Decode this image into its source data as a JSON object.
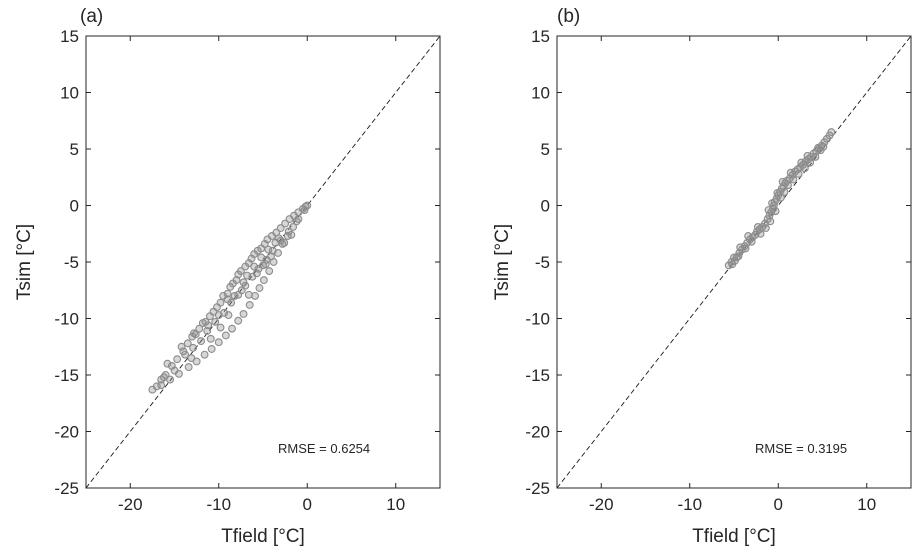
{
  "chart_data": [
    {
      "type": "scatter",
      "panel_label": "(a)",
      "xlabel": "Tfield [°C]",
      "ylabel": "Tsim [°C]",
      "xlim": [
        -25,
        15
      ],
      "ylim": [
        -25,
        15
      ],
      "xticks": [
        -20,
        -10,
        0,
        10
      ],
      "xtick_labels": [
        "-20",
        "-10",
        "0",
        "10"
      ],
      "yticks": [
        15,
        10,
        5,
        0,
        -5,
        -10,
        -15,
        -20,
        -25
      ],
      "ytick_labels": [
        "15",
        "10",
        "5",
        "0",
        "-5",
        "-10",
        "-15",
        "-20",
        "-25"
      ],
      "reference_line": "1:1 dashed",
      "annotation": "RMSE = 0.6254",
      "grid": false,
      "marker_color": "#8c8c8c",
      "series": [
        {
          "points": [
            [
              -17.5,
              -16.3
            ],
            [
              -17.0,
              -16.0
            ],
            [
              -16.5,
              -15.4
            ],
            [
              -16.0,
              -15.0
            ],
            [
              -15.3,
              -14.2
            ],
            [
              -14.7,
              -13.6
            ],
            [
              -14.0,
              -12.9
            ],
            [
              -13.5,
              -12.2
            ],
            [
              -13.0,
              -11.6
            ],
            [
              -12.6,
              -11.4
            ],
            [
              -12.2,
              -10.9
            ],
            [
              -11.8,
              -10.4
            ],
            [
              -11.5,
              -10.3
            ],
            [
              -11.0,
              -9.8
            ],
            [
              -10.6,
              -9.4
            ],
            [
              -10.2,
              -9.0
            ],
            [
              -9.8,
              -8.6
            ],
            [
              -9.5,
              -8.0
            ],
            [
              -9.0,
              -7.8
            ],
            [
              -8.7,
              -7.2
            ],
            [
              -8.4,
              -6.9
            ],
            [
              -8.0,
              -6.6
            ],
            [
              -7.8,
              -6.1
            ],
            [
              -7.5,
              -5.8
            ],
            [
              -7.0,
              -5.4
            ],
            [
              -6.6,
              -5.1
            ],
            [
              -6.3,
              -4.7
            ],
            [
              -6.0,
              -4.3
            ],
            [
              -5.6,
              -4.0
            ],
            [
              -5.2,
              -3.8
            ],
            [
              -4.8,
              -3.4
            ],
            [
              -4.5,
              -3.0
            ],
            [
              -4.0,
              -2.7
            ],
            [
              -3.5,
              -2.4
            ],
            [
              -3.0,
              -2.0
            ],
            [
              -2.5,
              -1.6
            ],
            [
              -2.0,
              -1.2
            ],
            [
              -1.5,
              -0.9
            ],
            [
              -1.0,
              -0.6
            ],
            [
              -0.5,
              -0.3
            ],
            [
              -0.2,
              -0.1
            ],
            [
              0.0,
              0.0
            ],
            [
              -0.3,
              -0.4
            ],
            [
              -1.0,
              -1.2
            ],
            [
              -1.6,
              -1.9
            ],
            [
              -2.2,
              -2.7
            ],
            [
              -2.8,
              -3.4
            ],
            [
              -3.3,
              -4.2
            ],
            [
              -3.8,
              -5.0
            ],
            [
              -4.3,
              -5.8
            ],
            [
              -4.9,
              -6.6
            ],
            [
              -5.4,
              -7.3
            ],
            [
              -5.9,
              -8.0
            ],
            [
              -6.5,
              -8.8
            ],
            [
              -7.2,
              -9.6
            ],
            [
              -7.8,
              -10.2
            ],
            [
              -8.5,
              -10.9
            ],
            [
              -9.2,
              -11.5
            ],
            [
              -10.0,
              -12.1
            ],
            [
              -10.8,
              -12.7
            ],
            [
              -11.6,
              -13.2
            ],
            [
              -12.5,
              -13.8
            ],
            [
              -13.4,
              -14.3
            ],
            [
              -14.5,
              -14.9
            ],
            [
              -15.5,
              -15.4
            ],
            [
              -16.5,
              -15.9
            ],
            [
              -12.9,
              -12.6
            ],
            [
              -12.0,
              -12.0
            ],
            [
              -11.3,
              -11.1
            ],
            [
              -10.4,
              -10.3
            ],
            [
              -9.4,
              -9.5
            ],
            [
              -8.6,
              -8.6
            ],
            [
              -7.8,
              -7.9
            ],
            [
              -7.0,
              -7.1
            ],
            [
              -6.2,
              -6.3
            ],
            [
              -5.5,
              -5.6
            ],
            [
              -4.6,
              -4.8
            ],
            [
              -3.9,
              -4.0
            ],
            [
              -3.0,
              -3.1
            ],
            [
              -2.1,
              -2.3
            ],
            [
              -1.2,
              -1.4
            ],
            [
              -6.8,
              -6.2
            ],
            [
              -6.0,
              -5.4
            ],
            [
              -5.2,
              -4.6
            ],
            [
              -4.4,
              -3.9
            ],
            [
              -3.6,
              -3.3
            ],
            [
              -8.2,
              -8.0
            ],
            [
              -9.0,
              -8.3
            ],
            [
              -10.0,
              -9.7
            ],
            [
              -11.2,
              -10.6
            ],
            [
              -13.8,
              -13.2
            ],
            [
              -15.0,
              -14.6
            ],
            [
              -16.2,
              -15.2
            ],
            [
              -14.2,
              -12.5
            ],
            [
              -12.8,
              -11.3
            ],
            [
              -15.8,
              -14.0
            ],
            [
              -13.1,
              -13.5
            ],
            [
              -2.6,
              -3.3
            ],
            [
              -1.8,
              -2.6
            ],
            [
              -4.1,
              -4.5
            ],
            [
              -5.7,
              -6.0
            ],
            [
              -7.4,
              -7.5
            ],
            [
              -8.9,
              -9.7
            ],
            [
              -9.8,
              -10.8
            ],
            [
              -10.9,
              -11.8
            ],
            [
              -7.2,
              -6.8
            ],
            [
              -5.0,
              -5.3
            ],
            [
              -6.6,
              -7.9
            ],
            [
              -4.7,
              -5.2
            ],
            [
              -3.2,
              -2.9
            ]
          ]
        }
      ]
    },
    {
      "type": "scatter",
      "panel_label": "(b)",
      "xlabel": "Tfield [°C]",
      "ylabel": "Tsim [°C]",
      "xlim": [
        -25,
        15
      ],
      "ylim": [
        -25,
        15
      ],
      "xticks": [
        -20,
        -10,
        0,
        10
      ],
      "xtick_labels": [
        "-20",
        "-10",
        "0",
        "10"
      ],
      "yticks": [
        15,
        10,
        5,
        0,
        -5,
        -10,
        -15,
        -20,
        -25
      ],
      "ytick_labels": [
        "15",
        "10",
        "5",
        "0",
        "-5",
        "-10",
        "-15",
        "-20",
        "-25"
      ],
      "reference_line": "1:1 dashed",
      "annotation": "RMSE = 0.3195",
      "grid": false,
      "marker_color": "#8c8c8c",
      "series": [
        {
          "points": [
            [
              -5.6,
              -5.3
            ],
            [
              -5.3,
              -5.0
            ],
            [
              -5.0,
              -4.6
            ],
            [
              -4.7,
              -4.6
            ],
            [
              -4.4,
              -4.2
            ],
            [
              -4.1,
              -3.9
            ],
            [
              -3.8,
              -3.6
            ],
            [
              -3.5,
              -3.3
            ],
            [
              -3.2,
              -3.0
            ],
            [
              -2.9,
              -2.8
            ],
            [
              -2.6,
              -2.6
            ],
            [
              -2.4,
              -2.3
            ],
            [
              -2.1,
              -2.1
            ],
            [
              -1.8,
              -1.9
            ],
            [
              -1.5,
              -1.6
            ],
            [
              -1.2,
              -1.2
            ],
            [
              -1.0,
              -0.9
            ],
            [
              -0.8,
              -0.6
            ],
            [
              -0.6,
              -0.3
            ],
            [
              -0.5,
              0.0
            ],
            [
              -0.4,
              0.3
            ],
            [
              -0.2,
              0.6
            ],
            [
              0.0,
              0.9
            ],
            [
              0.2,
              1.2
            ],
            [
              0.4,
              1.5
            ],
            [
              0.6,
              1.7
            ],
            [
              0.8,
              2.0
            ],
            [
              1.0,
              2.2
            ],
            [
              1.3,
              2.4
            ],
            [
              1.6,
              2.7
            ],
            [
              1.9,
              3.0
            ],
            [
              2.2,
              3.2
            ],
            [
              2.5,
              3.4
            ],
            [
              2.8,
              3.6
            ],
            [
              3.1,
              3.9
            ],
            [
              3.4,
              4.1
            ],
            [
              3.7,
              4.3
            ],
            [
              4.0,
              4.6
            ],
            [
              4.3,
              4.8
            ],
            [
              4.6,
              5.0
            ],
            [
              4.9,
              5.3
            ],
            [
              5.2,
              5.6
            ],
            [
              5.5,
              5.9
            ],
            [
              5.8,
              6.2
            ],
            [
              6.0,
              6.5
            ],
            [
              -0.3,
              -0.5
            ],
            [
              -0.9,
              -1.4
            ],
            [
              -1.4,
              -2.0
            ],
            [
              -2.0,
              -2.5
            ],
            [
              -3.0,
              -3.2
            ],
            [
              -3.7,
              -3.8
            ],
            [
              -4.5,
              -4.5
            ],
            [
              -5.2,
              -5.2
            ],
            [
              0.3,
              0.7
            ],
            [
              0.7,
              1.2
            ],
            [
              1.1,
              1.8
            ],
            [
              1.7,
              2.3
            ],
            [
              2.3,
              2.8
            ],
            [
              3.0,
              3.3
            ],
            [
              3.6,
              3.8
            ],
            [
              4.2,
              4.3
            ],
            [
              4.8,
              4.9
            ],
            [
              0.5,
              2.1
            ],
            [
              -0.1,
              1.1
            ],
            [
              -0.7,
              0.2
            ],
            [
              2.6,
              3.8
            ],
            [
              3.3,
              4.4
            ],
            [
              1.4,
              2.9
            ],
            [
              4.5,
              5.1
            ],
            [
              5.1,
              5.2
            ],
            [
              -1.1,
              -0.4
            ],
            [
              -2.3,
              -1.9
            ],
            [
              -3.4,
              -2.7
            ],
            [
              -4.3,
              -3.7
            ],
            [
              -4.9,
              -4.9
            ]
          ]
        }
      ]
    }
  ]
}
